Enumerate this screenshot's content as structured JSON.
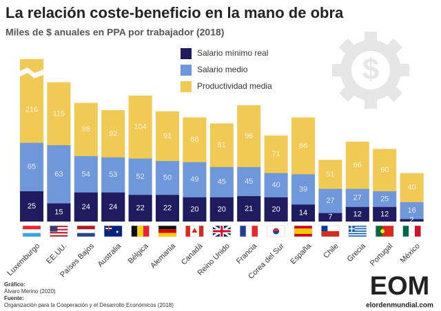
{
  "chart_data": {
    "type": "bar",
    "bar_mode": "overlap",
    "title": "La relación coste-beneficio en la mano de obra",
    "subtitle": "Miles de $ anuales en PPA por trabajador (2018)",
    "categories": [
      "Luxemburgo",
      "EE.UU.",
      "Países Bajos",
      "Australia",
      "Bélgica",
      "Alemania",
      "Canadá",
      "Reino Unido",
      "Francia",
      "Corea del Sur",
      "España",
      "Chile",
      "Grecia",
      "Portugal",
      "México"
    ],
    "series": [
      {
        "name": "Salario mínimo real",
        "color": "#1e1b5e",
        "values": [
          25,
          15,
          24,
          24,
          22,
          22,
          20,
          20,
          21,
          20,
          14,
          7,
          12,
          12,
          2
        ]
      },
      {
        "name": "Salario medio",
        "color": "#6f98da",
        "values": [
          65,
          63,
          54,
          53,
          52,
          50,
          49,
          45,
          45,
          40,
          39,
          27,
          27,
          25,
          16
        ]
      },
      {
        "name": "Productividad media",
        "color": "#f1c955",
        "values": [
          216,
          115,
          98,
          92,
          104,
          91,
          86,
          81,
          96,
          71,
          86,
          51,
          66,
          60,
          40
        ]
      }
    ],
    "icon": "$",
    "credit_label": "Gráfico:",
    "credit": "Álvaro Merino (2020)",
    "source_label": "Fuente:",
    "source": "Organización para la Cooperación y el Desarrollo Económicos (2018)",
    "logo": {
      "mark": "EOM",
      "site": "elordenmundial.com"
    }
  }
}
